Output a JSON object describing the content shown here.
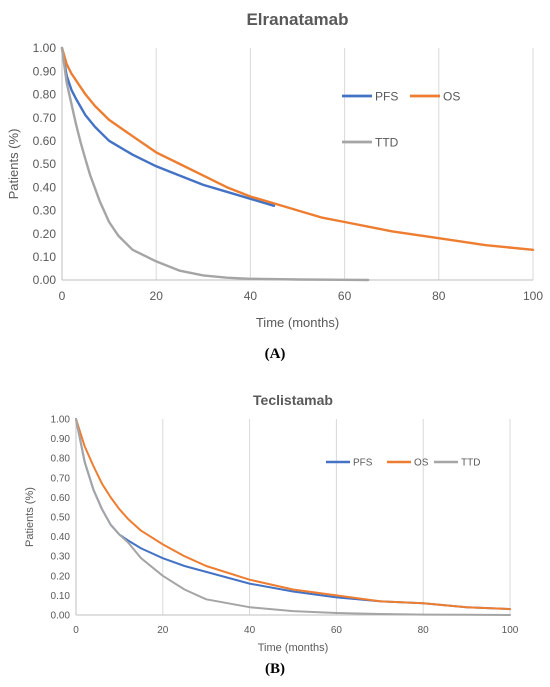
{
  "chart_data": [
    {
      "type": "line",
      "title": "Elranatamab",
      "xlabel": "Time (months)",
      "ylabel": "Patients (%)",
      "xlim": [
        0,
        100
      ],
      "ylim": [
        0,
        1
      ],
      "xticks": [
        "0",
        "20",
        "40",
        "60",
        "80",
        "100"
      ],
      "yticks": [
        "0.00",
        "0.10",
        "0.20",
        "0.30",
        "0.40",
        "0.50",
        "0.60",
        "0.70",
        "0.80",
        "0.90",
        "1.00"
      ],
      "grid": "vertical",
      "legend": "right",
      "panel_label": "(A)",
      "series": [
        {
          "name": "PFS",
          "color": "#4472C4",
          "x": [
            0,
            1,
            2,
            3,
            5,
            7,
            10,
            15,
            20,
            25,
            30,
            35,
            40,
            45
          ],
          "y": [
            1.0,
            0.88,
            0.82,
            0.78,
            0.71,
            0.66,
            0.6,
            0.54,
            0.49,
            0.45,
            0.41,
            0.38,
            0.35,
            0.32
          ]
        },
        {
          "name": "OS",
          "color": "#ED7D31",
          "x": [
            0,
            1,
            2,
            3,
            5,
            7,
            10,
            15,
            20,
            25,
            30,
            35,
            40,
            45,
            50,
            55,
            60,
            70,
            80,
            90,
            100
          ],
          "y": [
            1.0,
            0.93,
            0.89,
            0.86,
            0.8,
            0.75,
            0.69,
            0.62,
            0.55,
            0.5,
            0.45,
            0.4,
            0.36,
            0.33,
            0.3,
            0.27,
            0.25,
            0.21,
            0.18,
            0.15,
            0.13
          ]
        },
        {
          "name": "TTD",
          "color": "#A5A5A5",
          "x": [
            0,
            1,
            2,
            3,
            4,
            5,
            6,
            8,
            10,
            12,
            15,
            20,
            25,
            30,
            35,
            40,
            50,
            60,
            65
          ],
          "y": [
            1.0,
            0.85,
            0.76,
            0.67,
            0.59,
            0.52,
            0.45,
            0.34,
            0.25,
            0.19,
            0.13,
            0.08,
            0.04,
            0.02,
            0.01,
            0.005,
            0.002,
            0.001,
            0.0
          ]
        }
      ]
    },
    {
      "type": "line",
      "title": "Teclistamab",
      "xlabel": "Time (months)",
      "ylabel": "Patients (%)",
      "xlim": [
        0,
        100
      ],
      "ylim": [
        0,
        1
      ],
      "xticks": [
        "0",
        "20",
        "40",
        "60",
        "80",
        "100"
      ],
      "yticks": [
        "0.00",
        "0.10",
        "0.20",
        "0.30",
        "0.40",
        "0.50",
        "0.60",
        "0.70",
        "0.80",
        "0.90",
        "1.00"
      ],
      "grid": "vertical",
      "legend": "top-right",
      "panel_label": "(B)",
      "series": [
        {
          "name": "PFS",
          "color": "#4472C4",
          "x": [
            0,
            2,
            4,
            6,
            8,
            10,
            12,
            15,
            20,
            25,
            30,
            40,
            50,
            60,
            70,
            80,
            90,
            100
          ],
          "y": [
            1.0,
            0.78,
            0.64,
            0.54,
            0.46,
            0.41,
            0.38,
            0.34,
            0.29,
            0.25,
            0.22,
            0.16,
            0.12,
            0.09,
            0.07,
            0.06,
            0.04,
            0.03
          ]
        },
        {
          "name": "OS",
          "color": "#ED7D31",
          "x": [
            0,
            2,
            4,
            6,
            8,
            10,
            12,
            15,
            20,
            25,
            30,
            40,
            50,
            60,
            70,
            80,
            90,
            100
          ],
          "y": [
            1.0,
            0.86,
            0.76,
            0.67,
            0.6,
            0.54,
            0.49,
            0.43,
            0.36,
            0.3,
            0.25,
            0.18,
            0.13,
            0.1,
            0.07,
            0.06,
            0.04,
            0.03
          ]
        },
        {
          "name": "TTD",
          "color": "#A5A5A5",
          "x": [
            0,
            2,
            4,
            6,
            8,
            10,
            12,
            15,
            20,
            25,
            30,
            40,
            50,
            60,
            70,
            80,
            90,
            100
          ],
          "y": [
            1.0,
            0.78,
            0.64,
            0.54,
            0.46,
            0.41,
            0.37,
            0.29,
            0.2,
            0.13,
            0.08,
            0.04,
            0.02,
            0.01,
            0.005,
            0.002,
            0.001,
            0.0
          ]
        }
      ]
    }
  ]
}
